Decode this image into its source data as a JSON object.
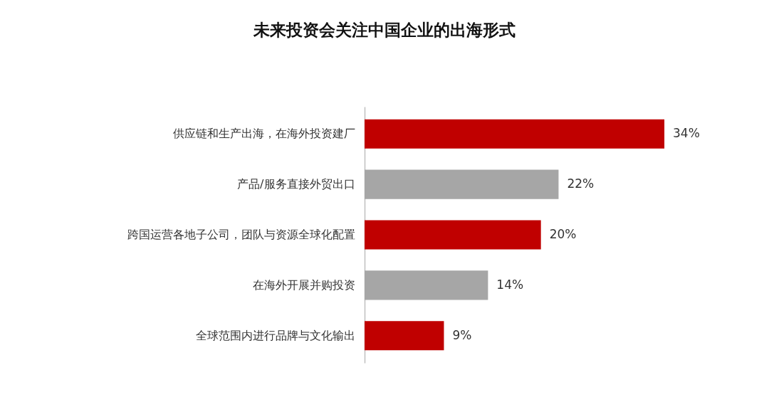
{
  "chart_data": {
    "type": "bar",
    "orientation": "horizontal",
    "title": "未来投资会关注中国企业的出海形式",
    "categories": [
      "供应链和生产出海，在海外投资建厂",
      "产品/服务直接外贸出口",
      "跨国运营各地子公司，团队与资源全球化配置",
      "在海外开展并购投资",
      "全球范围内进行品牌与文化输出"
    ],
    "values": [
      34,
      22,
      20,
      14,
      9
    ],
    "colors": [
      "#c00000",
      "#a6a6a6",
      "#c00000",
      "#a6a6a6",
      "#c00000"
    ],
    "value_labels": [
      "34%",
      "22%",
      "20%",
      "14%",
      "9%"
    ]
  }
}
